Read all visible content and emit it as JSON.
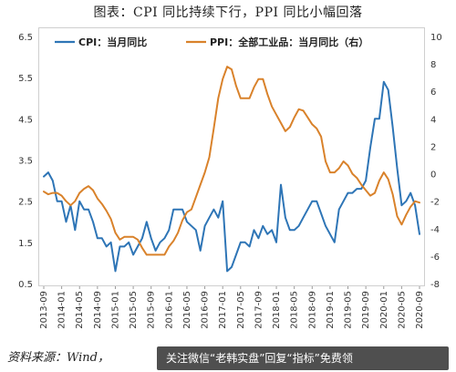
{
  "title": "图表：CPI 同比持续下行，PPI 同比小幅回落",
  "source": "资料来源：Wind，",
  "watermark": "关注微信“老韩实盘”回复“指标”免费领",
  "colors": {
    "cpi": "#2e75b6",
    "ppi": "#d9822b"
  },
  "chart_data": {
    "type": "line",
    "x": [
      "2013-09",
      "2013-10",
      "2013-11",
      "2013-12",
      "2014-01",
      "2014-02",
      "2014-03",
      "2014-04",
      "2014-05",
      "2014-06",
      "2014-07",
      "2014-08",
      "2014-09",
      "2014-10",
      "2014-11",
      "2014-12",
      "2015-01",
      "2015-02",
      "2015-03",
      "2015-04",
      "2015-05",
      "2015-06",
      "2015-07",
      "2015-08",
      "2015-09",
      "2015-10",
      "2015-11",
      "2015-12",
      "2016-01",
      "2016-02",
      "2016-03",
      "2016-04",
      "2016-05",
      "2016-06",
      "2016-07",
      "2016-08",
      "2016-09",
      "2016-10",
      "2016-11",
      "2016-12",
      "2017-01",
      "2017-02",
      "2017-03",
      "2017-04",
      "2017-05",
      "2017-06",
      "2017-07",
      "2017-08",
      "2017-09",
      "2017-10",
      "2017-11",
      "2017-12",
      "2018-01",
      "2018-02",
      "2018-03",
      "2018-04",
      "2018-05",
      "2018-06",
      "2018-07",
      "2018-08",
      "2018-09",
      "2018-10",
      "2018-11",
      "2018-12",
      "2019-01",
      "2019-02",
      "2019-03",
      "2019-04",
      "2019-05",
      "2019-06",
      "2019-07",
      "2019-08",
      "2019-09",
      "2019-10",
      "2019-11",
      "2019-12",
      "2020-01",
      "2020-02",
      "2020-03",
      "2020-04",
      "2020-05",
      "2020-06",
      "2020-07",
      "2020-08",
      "2020-09"
    ],
    "x_tick_labels": [
      "2013-09",
      "2014-01",
      "2014-05",
      "2014-09",
      "2015-01",
      "2015-05",
      "2015-09",
      "2016-01",
      "2016-05",
      "2016-09",
      "2017-01",
      "2017-05",
      "2017-09",
      "2018-01",
      "2018-05",
      "2018-09",
      "2019-01",
      "2019-05",
      "2019-09",
      "2020-01",
      "2020-05",
      "2020-09"
    ],
    "series": [
      {
        "name": "CPI：当月同比",
        "axis": "left",
        "values": [
          3.1,
          3.2,
          3.0,
          2.5,
          2.5,
          2.0,
          2.4,
          1.8,
          2.5,
          2.3,
          2.3,
          2.0,
          1.6,
          1.6,
          1.4,
          1.5,
          0.8,
          1.4,
          1.4,
          1.5,
          1.2,
          1.4,
          1.6,
          2.0,
          1.6,
          1.3,
          1.5,
          1.6,
          1.8,
          2.3,
          2.3,
          2.3,
          2.0,
          1.9,
          1.8,
          1.3,
          1.9,
          2.1,
          2.3,
          2.1,
          2.5,
          0.8,
          0.9,
          1.2,
          1.5,
          1.5,
          1.4,
          1.8,
          1.6,
          1.9,
          1.7,
          1.8,
          1.5,
          2.9,
          2.1,
          1.8,
          1.8,
          1.9,
          2.1,
          2.3,
          2.5,
          2.5,
          2.2,
          1.9,
          1.7,
          1.5,
          2.3,
          2.5,
          2.7,
          2.7,
          2.8,
          2.8,
          3.0,
          3.8,
          4.5,
          4.5,
          5.4,
          5.2,
          4.3,
          3.3,
          2.4,
          2.5,
          2.7,
          2.4,
          1.7
        ]
      },
      {
        "name": "PPI：全部工业品：当月同比（右）",
        "axis": "right",
        "values": [
          -1.3,
          -1.5,
          -1.4,
          -1.4,
          -1.6,
          -2.0,
          -2.3,
          -2.0,
          -1.4,
          -1.1,
          -0.9,
          -1.2,
          -1.8,
          -2.2,
          -2.7,
          -3.3,
          -4.3,
          -4.8,
          -4.6,
          -4.6,
          -4.6,
          -4.8,
          -5.4,
          -5.9,
          -5.9,
          -5.9,
          -5.9,
          -5.9,
          -5.3,
          -4.9,
          -4.3,
          -3.4,
          -2.8,
          -2.6,
          -1.7,
          -0.8,
          0.1,
          1.2,
          3.3,
          5.5,
          6.9,
          7.8,
          7.6,
          6.4,
          5.5,
          5.5,
          5.5,
          6.3,
          6.9,
          6.9,
          5.8,
          4.9,
          4.3,
          3.7,
          3.1,
          3.4,
          4.1,
          4.7,
          4.6,
          4.1,
          3.6,
          3.3,
          2.7,
          0.9,
          0.1,
          0.1,
          0.4,
          0.9,
          0.6,
          0.0,
          -0.3,
          -0.8,
          -1.2,
          -1.6,
          -1.4,
          -0.5,
          0.1,
          -0.4,
          -1.5,
          -3.1,
          -3.7,
          -3.0,
          -2.4,
          -2.0,
          -2.1
        ]
      }
    ],
    "left_axis": {
      "ylim": [
        0.5,
        6.5
      ],
      "ticks": [
        "0.5",
        "1.5",
        "2.5",
        "3.5",
        "4.5",
        "5.5",
        "6.5"
      ]
    },
    "right_axis": {
      "ylim": [
        -8,
        10
      ],
      "ticks": [
        "-8",
        "-6",
        "-4",
        "-2",
        "0",
        "2",
        "4",
        "6",
        "8",
        "10"
      ]
    },
    "legend_position": "top"
  }
}
